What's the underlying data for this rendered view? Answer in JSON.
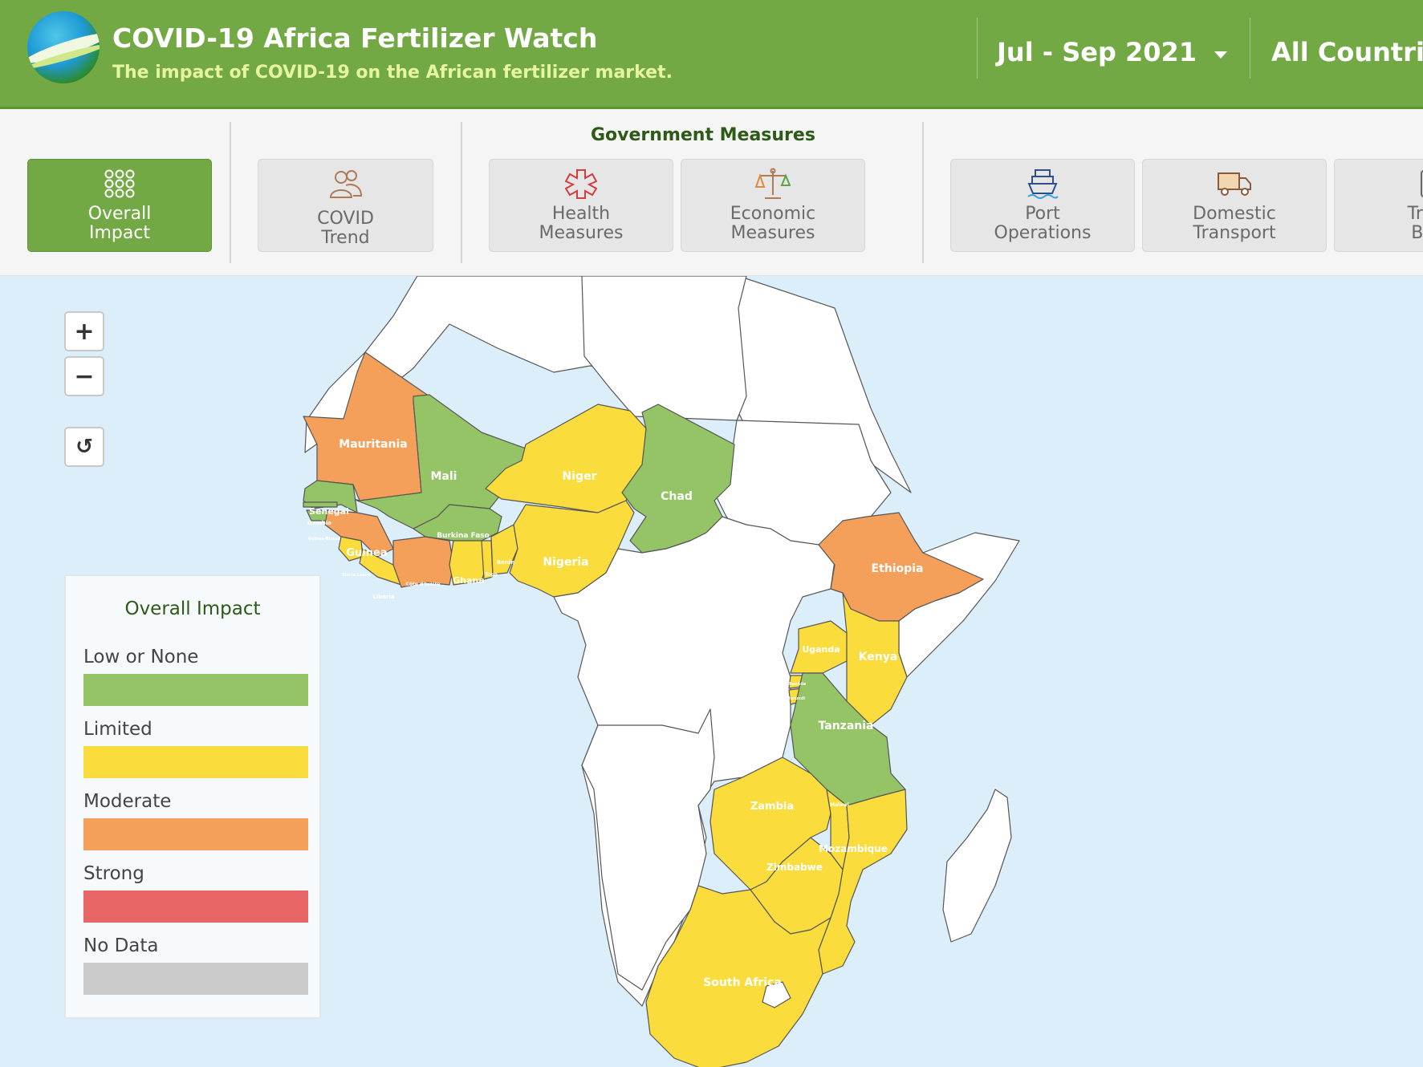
{
  "header": {
    "title": "COVID-19 Africa Fertilizer Watch",
    "subtitle": "The impact of COVID-19 on the African fertilizer market.",
    "period": "Jul - Sep 2021",
    "countries": "All Countries"
  },
  "toolbar": {
    "group_title": "Government Measures",
    "tabs": [
      {
        "line1": "Overall",
        "line2": "Impact",
        "icon": "dots-grid-icon",
        "active": true
      },
      {
        "line1": "COVID",
        "line2": "Trend",
        "icon": "people-icon",
        "active": false
      },
      {
        "line1": "Health",
        "line2": "Measures",
        "icon": "medical-cross-icon",
        "active": false
      },
      {
        "line1": "Economic",
        "line2": "Measures",
        "icon": "scale-icon",
        "active": false
      },
      {
        "line1": "Port",
        "line2": "Operations",
        "icon": "ship-icon",
        "active": false
      },
      {
        "line1": "Domestic",
        "line2": "Transport",
        "icon": "truck-icon",
        "active": false
      },
      {
        "line1": "Tran",
        "line2": "Bor",
        "icon": "border-icon",
        "active": false
      }
    ]
  },
  "map_controls": {
    "zoom_in": "+",
    "zoom_out": "−",
    "reset": "↺"
  },
  "legend": {
    "title": "Overall Impact",
    "items": [
      {
        "label": "Low or None",
        "color": "#95c467"
      },
      {
        "label": "Limited",
        "color": "#fbdc3d"
      },
      {
        "label": "Moderate",
        "color": "#f5a05a"
      },
      {
        "label": "Strong",
        "color": "#e86565"
      },
      {
        "label": "No Data",
        "color": "#cbcbcb"
      }
    ]
  },
  "countries": [
    {
      "name": "Mauritania",
      "impact": "Moderate"
    },
    {
      "name": "Mali",
      "impact": "Low or None"
    },
    {
      "name": "Niger",
      "impact": "Limited"
    },
    {
      "name": "Chad",
      "impact": "Low or None"
    },
    {
      "name": "Senegal",
      "impact": "Low or None"
    },
    {
      "name": "Gambia",
      "impact": "Low or None"
    },
    {
      "name": "Burkina Faso",
      "impact": "Low or None"
    },
    {
      "name": "Guinea",
      "impact": "Moderate"
    },
    {
      "name": "Nigeria",
      "impact": "Limited"
    },
    {
      "name": "Ghana",
      "impact": "Limited"
    },
    {
      "name": "Togo",
      "impact": "Limited"
    },
    {
      "name": "Benin",
      "impact": "Limited"
    },
    {
      "name": "Côte d'Ivoire",
      "impact": "Moderate"
    },
    {
      "name": "Liberia",
      "impact": "Limited"
    },
    {
      "name": "Sierra Leone",
      "impact": "Limited"
    },
    {
      "name": "Guinea-Bissau",
      "impact": "Low or None"
    },
    {
      "name": "Ethiopia",
      "impact": "Moderate"
    },
    {
      "name": "Uganda",
      "impact": "Limited"
    },
    {
      "name": "Kenya",
      "impact": "Limited"
    },
    {
      "name": "Rwanda",
      "impact": "Limited"
    },
    {
      "name": "Burundi",
      "impact": "Limited"
    },
    {
      "name": "Tanzania",
      "impact": "Low or None"
    },
    {
      "name": "Zambia",
      "impact": "Limited"
    },
    {
      "name": "Malawi",
      "impact": "Limited"
    },
    {
      "name": "Mozambique",
      "impact": "Limited"
    },
    {
      "name": "Zimbabwe",
      "impact": "Limited"
    },
    {
      "name": "South Africa",
      "impact": "Limited"
    }
  ]
}
